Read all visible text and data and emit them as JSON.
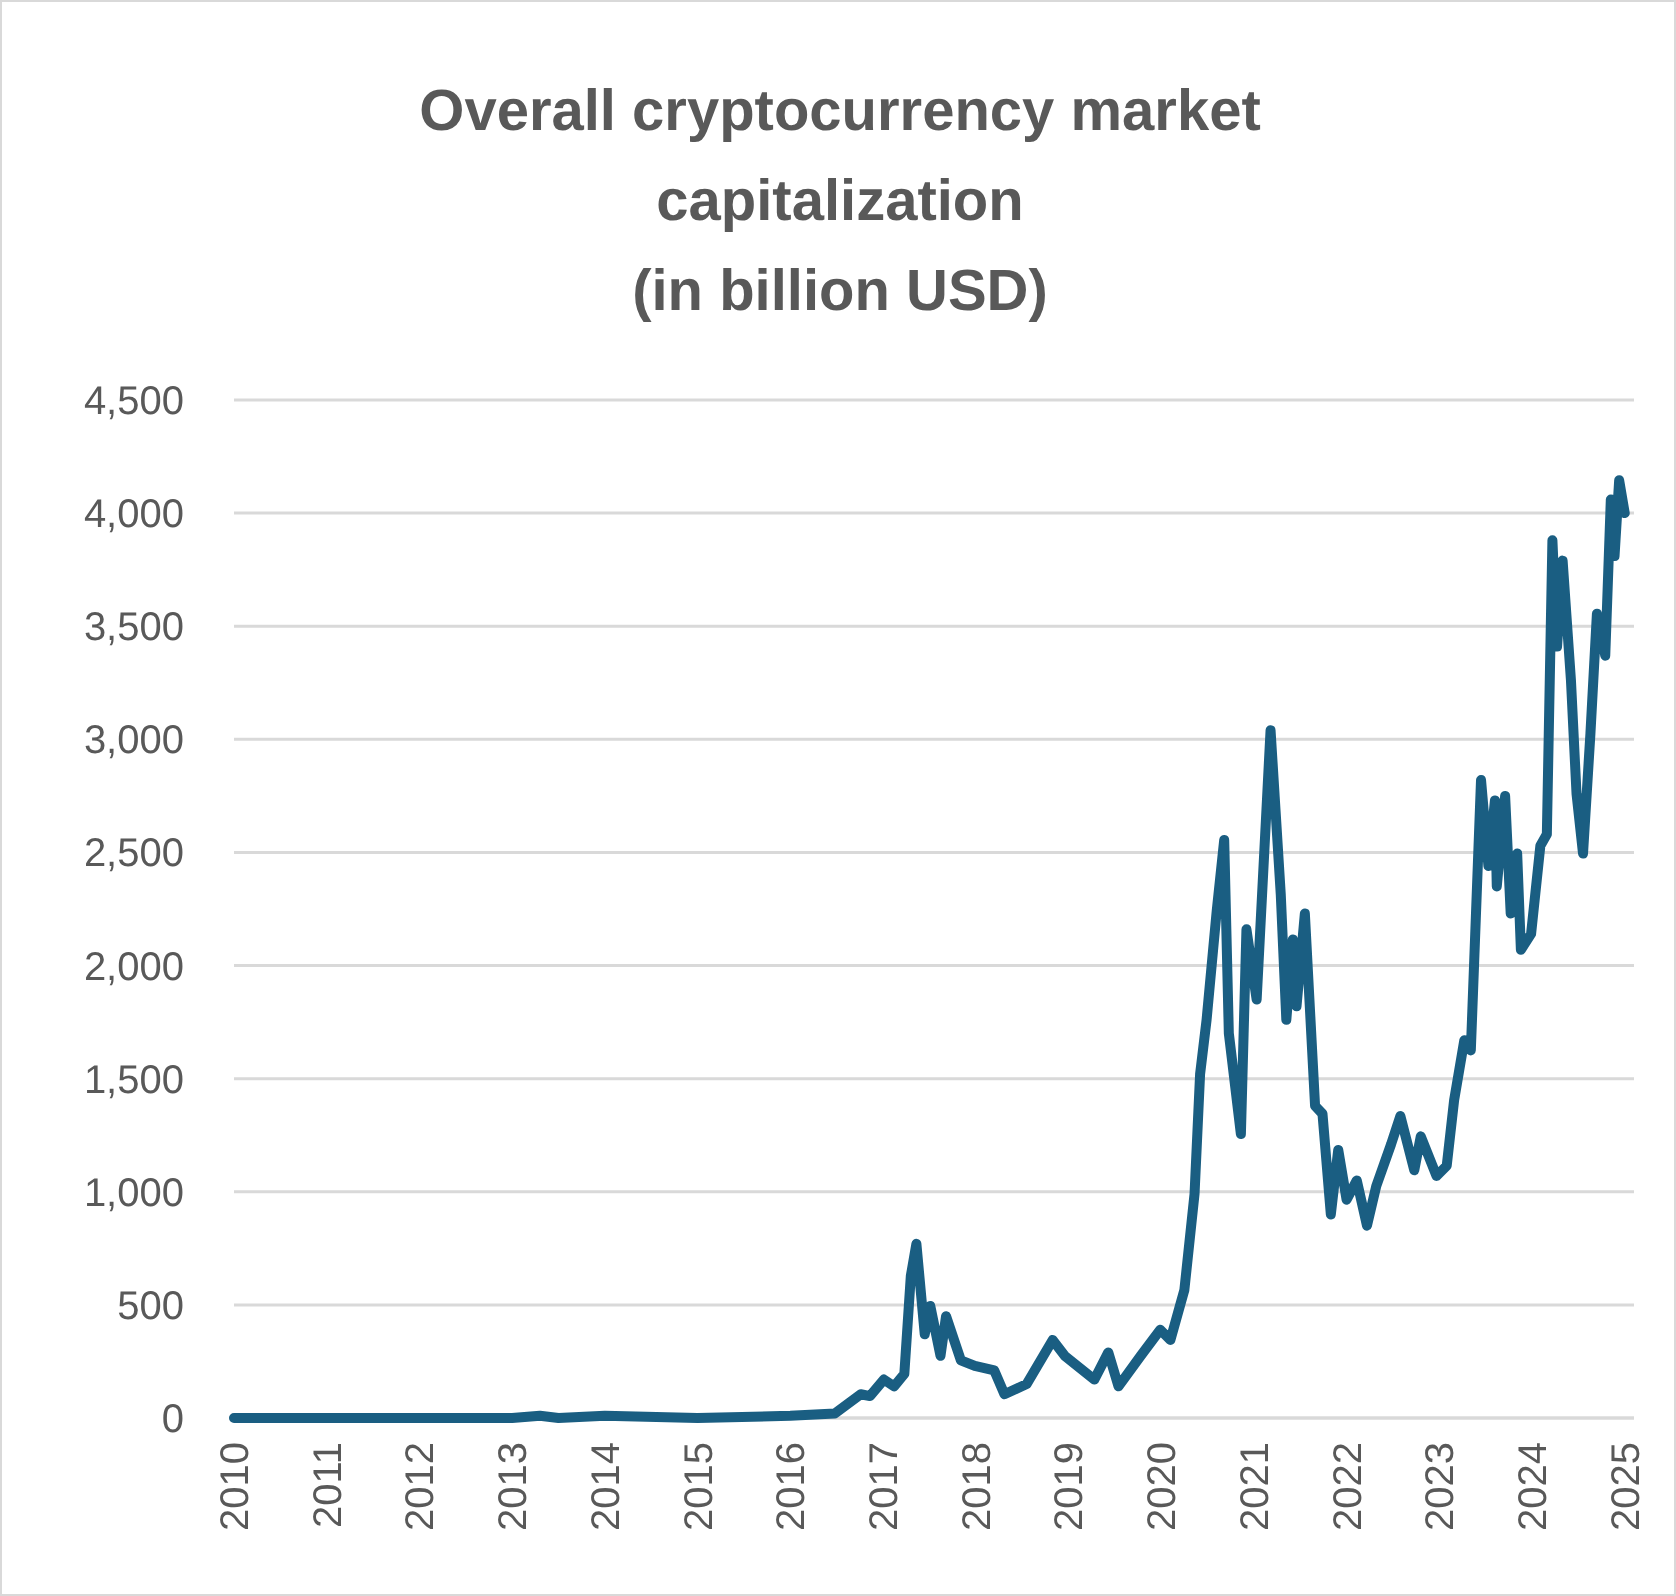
{
  "chart_data": {
    "type": "line",
    "title": "Overall cryptocurrency market\ncapitalization\n(in billion USD)",
    "x": [
      2010,
      2011,
      2012,
      2013,
      2013.3,
      2013.5,
      2014,
      2015,
      2016,
      2016.48,
      2016.76,
      2016.86,
      2017.01,
      2017.12,
      2017.23,
      2017.3,
      2017.36,
      2017.45,
      2017.51,
      2017.62,
      2017.68,
      2017.84,
      2017.99,
      2018.2,
      2018.31,
      2018.55,
      2018.83,
      2018.96,
      2019.28,
      2019.43,
      2019.54,
      2019.78,
      2019.99,
      2020.1,
      2020.25,
      2020.36,
      2020.42,
      2020.49,
      2020.6,
      2020.68,
      2020.73,
      2020.86,
      2020.92,
      2021.03,
      2021.18,
      2021.29,
      2021.35,
      2021.42,
      2021.46,
      2021.55,
      2021.66,
      2021.74,
      2021.83,
      2021.91,
      2022.0,
      2022.11,
      2022.22,
      2022.32,
      2022.48,
      2022.58,
      2022.73,
      2022.8,
      2022.97,
      2023.08,
      2023.16,
      2023.27,
      2023.34,
      2023.45,
      2023.53,
      2023.6,
      2023.62,
      2023.71,
      2023.77,
      2023.84,
      2023.88,
      2023.99,
      2024.09,
      2024.16,
      2024.22,
      2024.27,
      2024.33,
      2024.42,
      2024.48,
      2024.55,
      2024.63,
      2024.7,
      2024.79,
      2024.85,
      2024.89,
      2024.94,
      2025.0
    ],
    "series": [
      {
        "color": "#1a5e82",
        "values": [
          0,
          0,
          0,
          0,
          10,
          0,
          10,
          0,
          10,
          20,
          105,
          97,
          170,
          140,
          195,
          628,
          770,
          370,
          495,
          275,
          450,
          255,
          230,
          210,
          105,
          150,
          345,
          275,
          170,
          290,
          140,
          275,
          390,
          345,
          565,
          990,
          1520,
          1760,
          2245,
          2555,
          1700,
          1255,
          2160,
          1850,
          3040,
          2315,
          1760,
          2115,
          1820,
          2230,
          1380,
          1345,
          900,
          1185,
          965,
          1050,
          850,
          1025,
          1210,
          1335,
          1095,
          1245,
          1070,
          1115,
          1405,
          1670,
          1625,
          2820,
          2440,
          2730,
          2350,
          2750,
          2230,
          2495,
          2070,
          2140,
          2530,
          2580,
          3880,
          3410,
          3790,
          3260,
          2760,
          2495,
          3025,
          3555,
          3370,
          4060,
          3810,
          4145,
          4000
        ]
      }
    ],
    "xlim": [
      2010,
      2025.1
    ],
    "xticks": [
      2010,
      2011,
      2012,
      2013,
      2014,
      2015,
      2016,
      2017,
      2018,
      2019,
      2020,
      2021,
      2022,
      2023,
      2024,
      2025
    ],
    "ylim": [
      0,
      4500
    ],
    "yticks": [
      {
        "value": 0,
        "label": "0"
      },
      {
        "value": 500,
        "label": "500"
      },
      {
        "value": 1000,
        "label": "1,000"
      },
      {
        "value": 1500,
        "label": "1,500"
      },
      {
        "value": 2000,
        "label": "2,000"
      },
      {
        "value": 2500,
        "label": "2,500"
      },
      {
        "value": 3000,
        "label": "3,000"
      },
      {
        "value": 3500,
        "label": "3,500"
      },
      {
        "value": 4000,
        "label": "4,000"
      },
      {
        "value": 4500,
        "label": "4,500"
      }
    ],
    "grid": "y",
    "marker": "none",
    "line_style": "solid"
  }
}
